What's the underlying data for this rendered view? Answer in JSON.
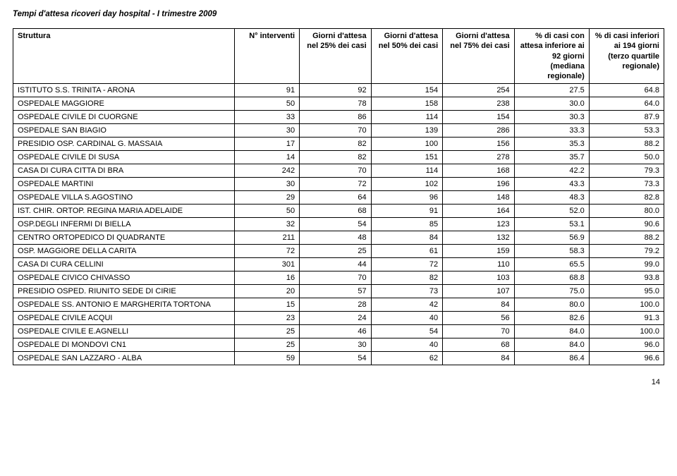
{
  "title": "Tempi d'attesa ricoveri day hospital - I trimestre 2009",
  "page_number": "14",
  "table": {
    "columns": [
      {
        "label": "Struttura",
        "align": "left",
        "width": "34%"
      },
      {
        "label": "N° interventi",
        "align": "right",
        "width": "10%"
      },
      {
        "label": "Giorni d'attesa nel 25% dei casi",
        "align": "right",
        "width": "11%"
      },
      {
        "label": "Giorni d'attesa nel 50% dei casi",
        "align": "right",
        "width": "11%"
      },
      {
        "label": "Giorni d'attesa nel 75% dei casi",
        "align": "right",
        "width": "11%"
      },
      {
        "label": "% di casi con attesa inferiore ai 92 giorni (mediana regionale)",
        "align": "right",
        "width": "11.5%"
      },
      {
        "label": "% di casi inferiori ai 194 giorni (terzo quartile regionale)",
        "align": "right",
        "width": "11.5%"
      }
    ],
    "rows": [
      [
        "ISTITUTO S.S. TRINITA - ARONA",
        "91",
        "92",
        "154",
        "254",
        "27.5",
        "64.8"
      ],
      [
        "OSPEDALE MAGGIORE",
        "50",
        "78",
        "158",
        "238",
        "30.0",
        "64.0"
      ],
      [
        "OSPEDALE CIVILE DI CUORGNE",
        "33",
        "86",
        "114",
        "154",
        "30.3",
        "87.9"
      ],
      [
        "OSPEDALE SAN BIAGIO",
        "30",
        "70",
        "139",
        "286",
        "33.3",
        "53.3"
      ],
      [
        "PRESIDIO OSP. CARDINAL G. MASSAIA",
        "17",
        "82",
        "100",
        "156",
        "35.3",
        "88.2"
      ],
      [
        "OSPEDALE CIVILE DI SUSA",
        "14",
        "82",
        "151",
        "278",
        "35.7",
        "50.0"
      ],
      [
        "CASA DI CURA CITTA DI BRA",
        "242",
        "70",
        "114",
        "168",
        "42.2",
        "79.3"
      ],
      [
        "OSPEDALE MARTINI",
        "30",
        "72",
        "102",
        "196",
        "43.3",
        "73.3"
      ],
      [
        "OSPEDALE VILLA S.AGOSTINO",
        "29",
        "64",
        "96",
        "148",
        "48.3",
        "82.8"
      ],
      [
        "IST. CHIR. ORTOP. REGINA MARIA ADELAIDE",
        "50",
        "68",
        "91",
        "164",
        "52.0",
        "80.0"
      ],
      [
        "OSP.DEGLI INFERMI DI BIELLA",
        "32",
        "54",
        "85",
        "123",
        "53.1",
        "90.6"
      ],
      [
        "CENTRO ORTOPEDICO DI QUADRANTE",
        "211",
        "48",
        "84",
        "132",
        "56.9",
        "88.2"
      ],
      [
        "OSP. MAGGIORE DELLA CARITA",
        "72",
        "25",
        "61",
        "159",
        "58.3",
        "79.2"
      ],
      [
        "CASA DI CURA CELLINI",
        "301",
        "44",
        "72",
        "110",
        "65.5",
        "99.0"
      ],
      [
        "OSPEDALE CIVICO CHIVASSO",
        "16",
        "70",
        "82",
        "103",
        "68.8",
        "93.8"
      ],
      [
        "PRESIDIO OSPED. RIUNITO SEDE DI CIRIE",
        "20",
        "57",
        "73",
        "107",
        "75.0",
        "95.0"
      ],
      [
        "OSPEDALE SS. ANTONIO E MARGHERITA TORTONA",
        "15",
        "28",
        "42",
        "84",
        "80.0",
        "100.0"
      ],
      [
        "OSPEDALE CIVILE ACQUI",
        "23",
        "24",
        "40",
        "56",
        "82.6",
        "91.3"
      ],
      [
        "OSPEDALE CIVILE E.AGNELLI",
        "25",
        "46",
        "54",
        "70",
        "84.0",
        "100.0"
      ],
      [
        "OSPEDALE DI MONDOVI CN1",
        "25",
        "30",
        "40",
        "68",
        "84.0",
        "96.0"
      ],
      [
        "OSPEDALE SAN LAZZARO - ALBA",
        "59",
        "54",
        "62",
        "84",
        "86.4",
        "96.6"
      ]
    ]
  }
}
